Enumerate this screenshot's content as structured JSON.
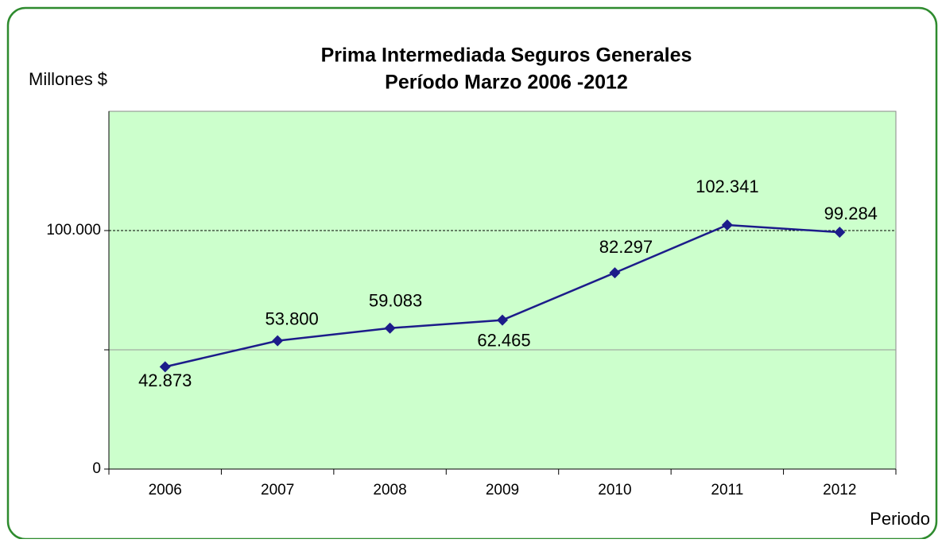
{
  "chart_data": {
    "type": "line",
    "title": [
      "Prima Intermediada  Seguros Generales",
      "Período Marzo  2006 -2012"
    ],
    "y_label": "Millones $",
    "x_label": "Periodo",
    "categories": [
      "2006",
      "2007",
      "2008",
      "2009",
      "2010",
      "2011",
      "2012"
    ],
    "series": [
      {
        "name": "Prima Intermediada",
        "color": "#1c1c8a",
        "values": [
          42873,
          53800,
          59083,
          62465,
          82297,
          102341,
          99284
        ],
        "value_labels": [
          "42.873",
          "53.800",
          "59.083",
          "62.465",
          "82.297",
          "102.341",
          "99.284"
        ]
      }
    ],
    "ylim": [
      0,
      150000
    ],
    "yticks": [
      0,
      {
        "value": 50000,
        "label": null
      },
      {
        "value": 100000,
        "label": "100.000"
      }
    ],
    "grid": true,
    "plot_background": "#ccffcc"
  }
}
